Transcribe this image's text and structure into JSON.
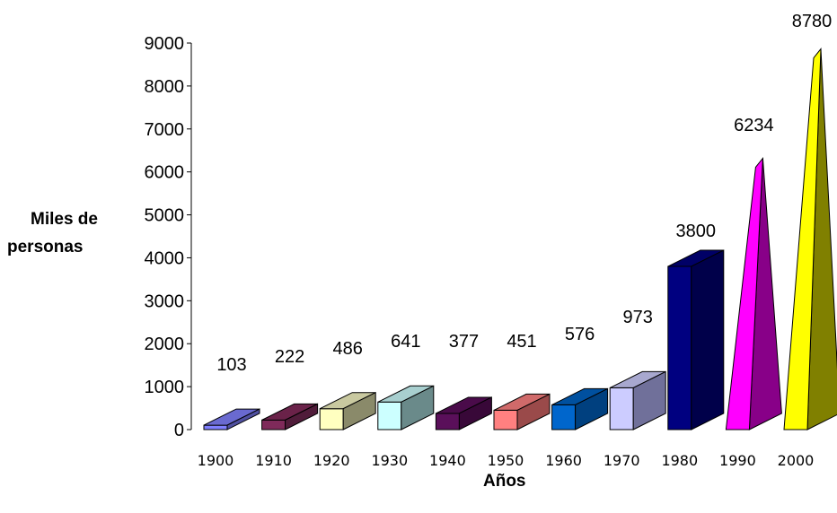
{
  "chart_data": {
    "type": "bar",
    "categories": [
      "1900",
      "1910",
      "1920",
      "1930",
      "1940",
      "1950",
      "1960",
      "1970",
      "1980",
      "1990",
      "2000"
    ],
    "values": [
      103,
      222,
      486,
      641,
      377,
      451,
      576,
      973,
      3800,
      6234,
      8780
    ],
    "data_labels": [
      "103",
      "222",
      "486",
      "641",
      "377",
      "451",
      "576",
      "973",
      "3800",
      "6234",
      "8780"
    ],
    "ylabel_line1": "Miles de",
    "ylabel_line2": "personas",
    "xlabel": "Años",
    "ylim": [
      0,
      9000
    ],
    "yticks": [
      "0",
      "1000",
      "2000",
      "3000",
      "4000",
      "5000",
      "6000",
      "7000",
      "8000",
      "9000"
    ],
    "grid": false,
    "shapes": [
      "box",
      "box",
      "box",
      "box",
      "box",
      "box",
      "box",
      "box",
      "box",
      "pyramid",
      "pyramid"
    ],
    "colors": {
      "front": [
        "#8080ff",
        "#7f2a5a",
        "#ffffc0",
        "#ccffff",
        "#5a0f5a",
        "#ff8080",
        "#0066cc",
        "#ccccff",
        "#000080",
        "#ff00ff",
        "#ffff00"
      ],
      "top": [
        "#6a6ad0",
        "#6a2249",
        "#c9c9a0",
        "#a8cfcf",
        "#4a0b4a",
        "#d06a6a",
        "#00509f",
        "#a8a8cf",
        "#000066",
        "#d000d0",
        "#d0d000"
      ],
      "side": [
        "#5050a0",
        "#501c3a",
        "#8a8a6a",
        "#6a8a8a",
        "#380838",
        "#9a4a4a",
        "#00407f",
        "#70709a",
        "#00004a",
        "#880088",
        "#808000"
      ]
    }
  }
}
